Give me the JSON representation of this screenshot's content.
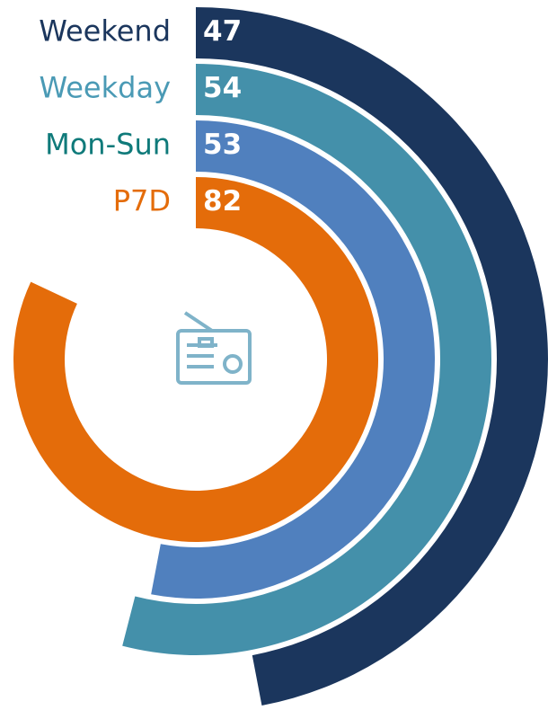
{
  "chart_data": {
    "type": "radial-bar",
    "categories": [
      "Weekend",
      "Weekday",
      "Mon-Sun",
      "P7D"
    ],
    "values": [
      47,
      54,
      53,
      82
    ],
    "colors": [
      "#1b365d",
      "#4490aa",
      "#5080be",
      "#e46c0a"
    ],
    "label_colors": [
      "#1b365d",
      "#4a9ab5",
      "#0f7a7a",
      "#e46c0a"
    ],
    "ylim": [
      0,
      100
    ]
  }
}
